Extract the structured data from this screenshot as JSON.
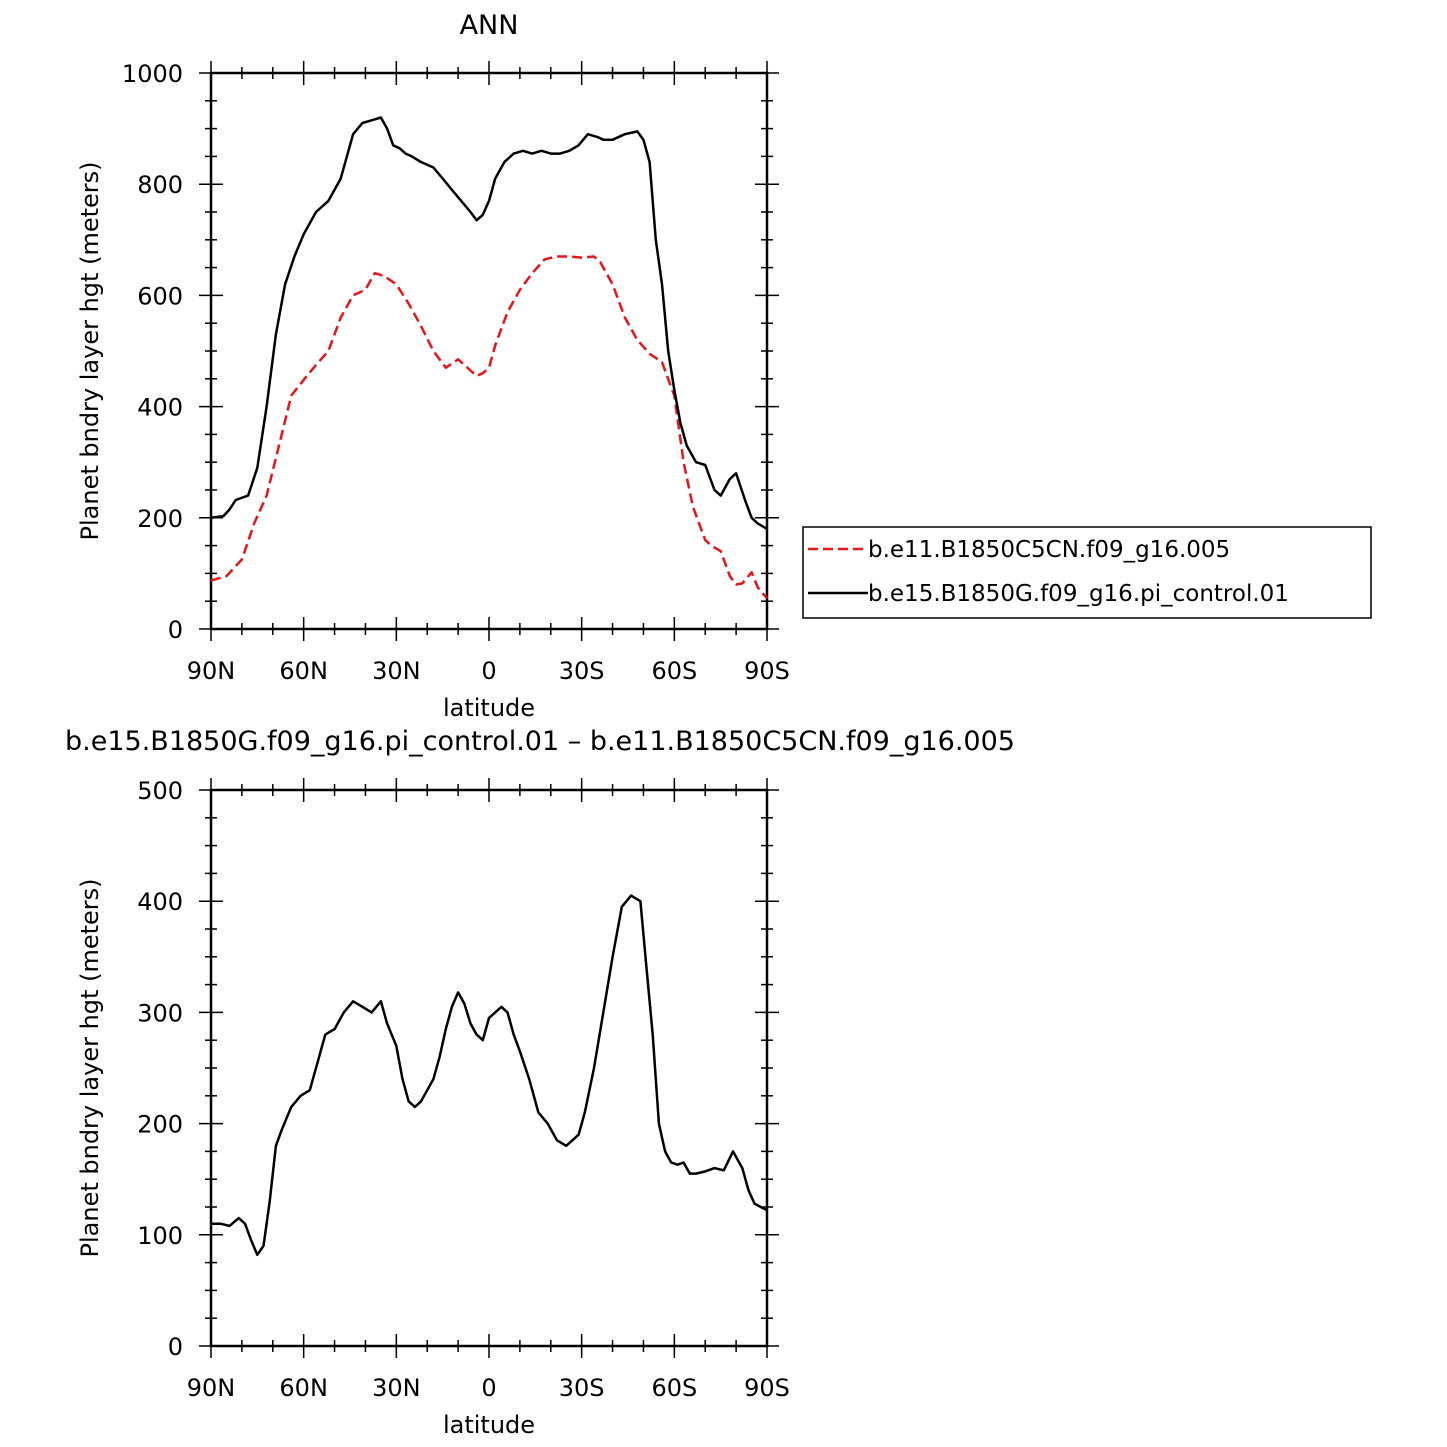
{
  "chart_data": [
    {
      "type": "line",
      "title": "ANN",
      "xlabel": "latitude",
      "ylabel": "Planet bndry layer hgt (meters)",
      "xlim": [
        90,
        -90
      ],
      "ylim": [
        0,
        1000
      ],
      "yticks": [
        0,
        200,
        400,
        600,
        800,
        1000
      ],
      "xtick_labels": [
        "90N",
        "60N",
        "30N",
        "0",
        "30S",
        "60S",
        "90S"
      ],
      "grid": false,
      "legend_position": "right",
      "series": [
        {
          "name": "b.e11.B1850C5CN.f09_g16.005",
          "color": "#e8141a",
          "dash": true,
          "x": [
            90,
            85,
            80,
            76,
            72,
            68,
            64,
            60,
            56,
            52,
            48,
            44,
            40,
            37,
            34,
            30,
            26,
            22,
            18,
            14,
            10,
            6,
            4,
            2,
            0,
            -2,
            -6,
            -10,
            -14,
            -18,
            -22,
            -26,
            -30,
            -34,
            -36,
            -40,
            -44,
            -48,
            -52,
            -56,
            -60,
            -63,
            -66,
            -70,
            -72,
            -75,
            -78,
            -80,
            -82,
            -85,
            -87,
            -90
          ],
          "y": [
            87,
            95,
            125,
            190,
            240,
            330,
            420,
            448,
            475,
            500,
            560,
            600,
            610,
            640,
            635,
            620,
            585,
            545,
            500,
            470,
            485,
            465,
            455,
            460,
            470,
            510,
            570,
            610,
            640,
            665,
            670,
            670,
            668,
            670,
            660,
            620,
            560,
            520,
            495,
            480,
            420,
            300,
            220,
            160,
            150,
            140,
            95,
            80,
            82,
            102,
            75,
            55
          ]
        },
        {
          "name": "b.e15.B1850G.f09_g16.pi_control.01",
          "color": "#000000",
          "dash": false,
          "x": [
            90,
            86,
            84,
            82,
            78,
            75,
            72,
            69,
            66,
            63,
            60,
            56,
            52,
            48,
            44,
            41,
            38,
            35,
            33,
            31,
            29,
            27,
            25,
            22,
            18,
            15,
            12,
            9,
            6,
            4,
            2,
            0,
            -2,
            -5,
            -8,
            -11,
            -14,
            -17,
            -20,
            -23,
            -26,
            -29,
            -32,
            -35,
            -37,
            -40,
            -44,
            -48,
            -50,
            -52,
            -54,
            -56,
            -58,
            -60,
            -62,
            -64,
            -67,
            -70,
            -73,
            -75,
            -78,
            -80,
            -83,
            -85,
            -87,
            -90
          ],
          "y": [
            200,
            203,
            215,
            232,
            240,
            290,
            400,
            530,
            620,
            670,
            710,
            750,
            770,
            810,
            890,
            910,
            915,
            920,
            900,
            870,
            865,
            855,
            850,
            840,
            830,
            810,
            790,
            770,
            750,
            735,
            745,
            770,
            810,
            840,
            855,
            860,
            855,
            860,
            855,
            855,
            860,
            870,
            890,
            885,
            880,
            880,
            890,
            895,
            880,
            840,
            700,
            620,
            500,
            430,
            370,
            330,
            300,
            295,
            250,
            240,
            270,
            280,
            230,
            200,
            190,
            180
          ]
        }
      ]
    },
    {
      "type": "line",
      "title": "b.e15.B1850G.f09_g16.pi_control.01 – b.e11.B1850C5CN.f09_g16.005",
      "xlabel": "latitude",
      "ylabel": "Planet bndry layer hgt (meters)",
      "xlim": [
        90,
        -90
      ],
      "ylim": [
        0,
        500
      ],
      "yticks": [
        0,
        100,
        200,
        300,
        400,
        500
      ],
      "xtick_labels": [
        "90N",
        "60N",
        "30N",
        "0",
        "30S",
        "60S",
        "90S"
      ],
      "grid": false,
      "series": [
        {
          "color": "#000000",
          "dash": false,
          "x": [
            90,
            87,
            84,
            81,
            79,
            77,
            75,
            73,
            71,
            69,
            67,
            64,
            61,
            58,
            55,
            53,
            50,
            47,
            44,
            41,
            38,
            35,
            33,
            30,
            28,
            26,
            24,
            22,
            20,
            18,
            16,
            14,
            12,
            10,
            8,
            6,
            4,
            2,
            0,
            -2,
            -4,
            -6,
            -8,
            -10,
            -13,
            -16,
            -19,
            -22,
            -25,
            -27,
            -29,
            -31,
            -34,
            -37,
            -40,
            -43,
            -46,
            -49,
            -51,
            -53,
            -55,
            -57,
            -59,
            -61,
            -63,
            -65,
            -67,
            -70,
            -73,
            -76,
            -79,
            -82,
            -84,
            -86,
            -88,
            -90
          ],
          "y": [
            110,
            110,
            108,
            115,
            110,
            95,
            82,
            90,
            130,
            180,
            195,
            215,
            225,
            230,
            260,
            280,
            285,
            300,
            310,
            305,
            300,
            310,
            290,
            270,
            240,
            220,
            215,
            220,
            230,
            240,
            260,
            285,
            305,
            318,
            308,
            290,
            280,
            275,
            295,
            300,
            305,
            300,
            280,
            265,
            240,
            210,
            200,
            185,
            180,
            185,
            190,
            210,
            250,
            300,
            350,
            395,
            405,
            400,
            340,
            280,
            200,
            175,
            165,
            163,
            165,
            155,
            155,
            157,
            160,
            158,
            175,
            160,
            140,
            128,
            125,
            122
          ]
        }
      ]
    }
  ],
  "legend": {
    "items": [
      {
        "label": "b.e11.B1850C5CN.f09_g16.005",
        "color": "#e8141a",
        "dash": true
      },
      {
        "label": "b.e15.B1850G.f09_g16.pi_control.01",
        "color": "#000000",
        "dash": false
      }
    ]
  }
}
